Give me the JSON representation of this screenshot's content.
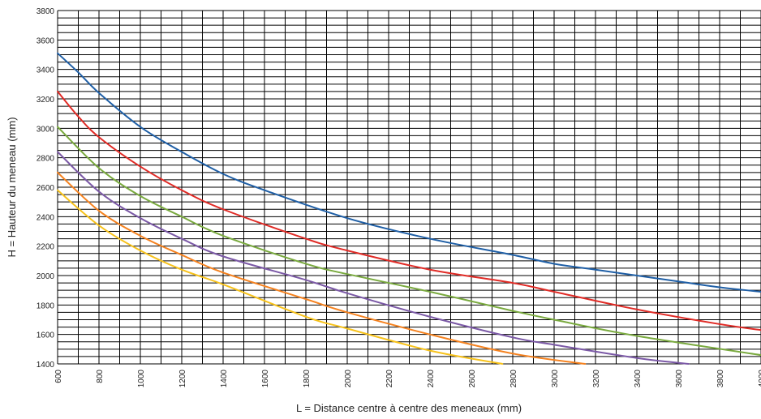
{
  "chart_data": {
    "type": "line",
    "title": "",
    "xlabel": "L = Distance centre à centre des meneaux (mm)",
    "ylabel": "H = Hauteur du meneau (mm)",
    "xlim": [
      600,
      4000
    ],
    "ylim": [
      1400,
      3800
    ],
    "x_ticks": [
      600,
      800,
      1000,
      1200,
      1400,
      1600,
      1800,
      2000,
      2200,
      2400,
      2600,
      2800,
      3000,
      3200,
      3400,
      3600,
      3800,
      4000
    ],
    "x_tick_labels": [
      "600",
      "800",
      "1000",
      "1200",
      "1400",
      "1600",
      "1800",
      "2000",
      "2200",
      "2400",
      "2600",
      "2800",
      "3000",
      "3200",
      "3400",
      "3600",
      "3800",
      "4000"
    ],
    "y_ticks": [
      1400,
      1600,
      1800,
      2000,
      2200,
      2400,
      2600,
      2800,
      3000,
      3200,
      3400,
      3600,
      3800
    ],
    "y_tick_labels": [
      "1400",
      "1600",
      "1800",
      "2000",
      "2200",
      "2400",
      "2600",
      "2800",
      "3000",
      "3200",
      "3400",
      "3600",
      "3800"
    ],
    "grid": true,
    "x_grid_step": 100,
    "y_grid_step": 50,
    "legend": "none",
    "series": [
      {
        "color": "#1f5fa6",
        "x": [
          600,
          700,
          800,
          1000,
          1200,
          1400,
          1600,
          2000,
          2400,
          2800,
          3000,
          3200,
          3600,
          3800,
          4000
        ],
        "y": [
          3510,
          3380,
          3240,
          3010,
          2840,
          2690,
          2580,
          2390,
          2250,
          2140,
          2080,
          2040,
          1960,
          1920,
          1890
        ]
      },
      {
        "color": "#e02b26",
        "x": [
          600,
          700,
          800,
          1000,
          1200,
          1400,
          1800,
          2000,
          2400,
          2800,
          3000,
          3400,
          3800,
          4000
        ],
        "y": [
          3250,
          3080,
          2940,
          2740,
          2580,
          2450,
          2250,
          2170,
          2040,
          1950,
          1890,
          1770,
          1670,
          1630
        ]
      },
      {
        "color": "#7aaa3f",
        "x": [
          600,
          800,
          1000,
          1200,
          1400,
          1800,
          2000,
          2400,
          2800,
          3000,
          3400,
          4000
        ],
        "y": [
          3010,
          2730,
          2540,
          2400,
          2270,
          2080,
          2010,
          1890,
          1760,
          1700,
          1590,
          1460
        ]
      },
      {
        "color": "#7b59a6",
        "x": [
          600,
          800,
          1000,
          1200,
          1400,
          1800,
          2000,
          2400,
          2800,
          3000,
          3400,
          3650
        ],
        "y": [
          2840,
          2570,
          2390,
          2250,
          2130,
          1970,
          1880,
          1720,
          1580,
          1530,
          1440,
          1400
        ]
      },
      {
        "color": "#f5821f",
        "x": [
          600,
          800,
          1000,
          1200,
          1400,
          1800,
          2000,
          2400,
          2800,
          3150
        ],
        "y": [
          2700,
          2440,
          2270,
          2140,
          2020,
          1840,
          1750,
          1600,
          1470,
          1400
        ]
      },
      {
        "color": "#f7c21b",
        "x": [
          600,
          800,
          1000,
          1200,
          1400,
          1800,
          2000,
          2400,
          2750
        ],
        "y": [
          2580,
          2340,
          2170,
          2040,
          1940,
          1720,
          1640,
          1490,
          1400
        ]
      }
    ]
  }
}
